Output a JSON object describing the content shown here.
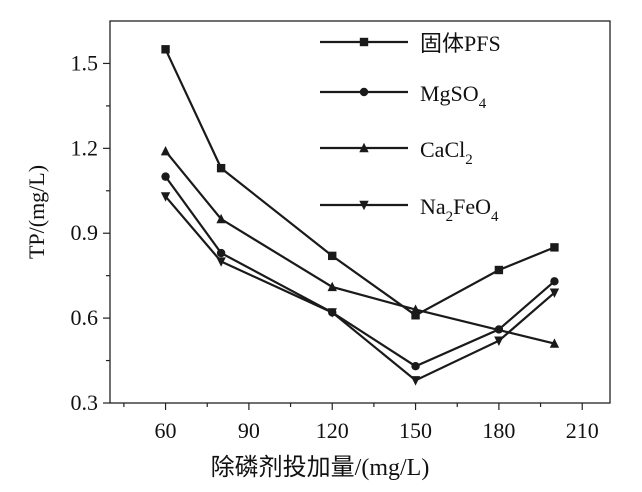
{
  "chart_data": {
    "type": "line",
    "title": "",
    "xlabel": "除磷剂投加量/(mg/L)",
    "ylabel": "TP/(mg/L)",
    "xlim": [
      40,
      220
    ],
    "ylim": [
      0.3,
      1.65
    ],
    "xticks": [
      60,
      90,
      120,
      150,
      180,
      210
    ],
    "xtick_labels": [
      "60",
      "90",
      "120",
      "150",
      "180",
      "210"
    ],
    "yticks": [
      0.3,
      0.6,
      0.9,
      1.2,
      1.5
    ],
    "ytick_labels": [
      "0.3",
      "0.6",
      "0.9",
      "1.2",
      "1.5"
    ],
    "grid": false,
    "legend_placement": "top-right",
    "line_color": "#1a1a1a",
    "x": [
      60,
      80,
      120,
      150,
      180,
      200
    ],
    "series": [
      {
        "name": "固体PFS",
        "name_main": "固体PFS",
        "name_sub": "",
        "name_tail": "",
        "name_sub2": "",
        "marker": "square",
        "values": [
          1.55,
          1.13,
          0.82,
          0.61,
          0.77,
          0.85
        ]
      },
      {
        "name": "MgSO4",
        "name_main": "MgSO",
        "name_sub": "4",
        "name_tail": "",
        "name_sub2": "",
        "marker": "circle",
        "values": [
          1.1,
          0.83,
          0.62,
          0.43,
          0.56,
          0.73
        ]
      },
      {
        "name": "CaCl2",
        "name_main": "CaCl",
        "name_sub": "2",
        "name_tail": "",
        "name_sub2": "",
        "marker": "triangle-up",
        "values": [
          1.19,
          0.95,
          0.71,
          0.63,
          null,
          0.51
        ]
      },
      {
        "name": "Na2FeO4",
        "name_main": "Na",
        "name_sub": "2",
        "name_tail": "FeO",
        "name_sub2": "4",
        "marker": "triangle-down",
        "values": [
          1.03,
          0.8,
          0.62,
          0.38,
          0.52,
          0.69
        ]
      }
    ]
  }
}
